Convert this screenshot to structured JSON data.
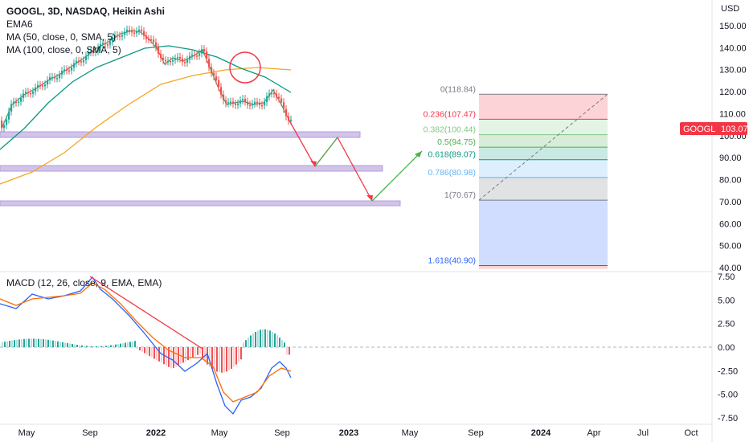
{
  "header": {
    "symbol_line": "GOOGL, 3D, NASDAQ, Heikin Ashi",
    "indicators": [
      "EMA6",
      "MA (50, close, 0, SMA, 5)",
      "MA (100, close, 0, SMA, 5)"
    ]
  },
  "macd_legend": "MACD (12, 26, close, 9, EMA, EMA)",
  "price_axis": {
    "currency": "USD",
    "ticks": [
      "150.00",
      "140.00",
      "130.00",
      "120.00",
      "110.00",
      "100.00",
      "90.00",
      "80.00",
      "70.00",
      "60.00",
      "50.00",
      "40.00"
    ]
  },
  "macd_axis": {
    "ticks": [
      "7.50",
      "5.00",
      "2.50",
      "0.00",
      "-2.50",
      "-5.00",
      "-7.50"
    ]
  },
  "time_axis": {
    "labels": [
      "May",
      "Sep",
      "2022",
      "May",
      "Sep",
      "2023",
      "May",
      "Sep",
      "2024",
      "Apr",
      "Jul",
      "Oct"
    ]
  },
  "price_badge": {
    "symbol": "GOOGL",
    "value": "103.07",
    "color": "#f23645"
  },
  "fib_levels": [
    {
      "label": "0(118.84)",
      "color": "#787b86"
    },
    {
      "label": "0.236(107.47)",
      "color": "#f23645"
    },
    {
      "label": "0.382(100.44)",
      "color": "#81c784"
    },
    {
      "label": "0.5(94.75)",
      "color": "#4caf50"
    },
    {
      "label": "0.618(89.07)",
      "color": "#089981"
    },
    {
      "label": "0.786(80.98)",
      "color": "#64b5f6"
    },
    {
      "label": "1(70.67)",
      "color": "#787b86"
    },
    {
      "label": "1.618(40.90)",
      "color": "#2962ff"
    }
  ],
  "colors": {
    "bull": "#26a69a",
    "bear": "#ef5350",
    "ema6": "#2e7d32",
    "ma50": "#089981",
    "ma100": "#f5a623",
    "zone": "#d1c4e9",
    "macd": "#2962ff",
    "signal": "#ff6d00"
  }
}
